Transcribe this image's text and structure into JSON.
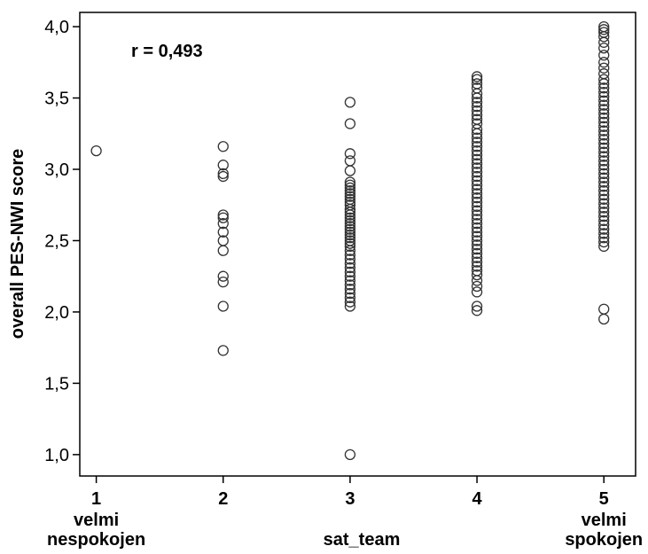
{
  "chart_data": {
    "type": "scatter",
    "xlabel": "sat_team",
    "ylabel": "overall PES-NWI score",
    "annotation": "r = 0,493",
    "xlim": [
      0.87,
      5.25
    ],
    "ylim": [
      0.85,
      4.1
    ],
    "grid": false,
    "x_ticks": [
      {
        "value": 1,
        "label": "1"
      },
      {
        "value": 2,
        "label": "2"
      },
      {
        "value": 3,
        "label": "3"
      },
      {
        "value": 4,
        "label": "4"
      },
      {
        "value": 5,
        "label": "5"
      }
    ],
    "x_category_labels": [
      {
        "value": 1,
        "lines": [
          "velmi",
          "nespokojen"
        ]
      },
      {
        "value": 5,
        "lines": [
          "velmi",
          "spokojen"
        ]
      }
    ],
    "y_ticks": [
      {
        "value": 1.0,
        "label": "1,0"
      },
      {
        "value": 1.5,
        "label": "1,5"
      },
      {
        "value": 2.0,
        "label": "2,0"
      },
      {
        "value": 2.5,
        "label": "2,5"
      },
      {
        "value": 3.0,
        "label": "3,0"
      },
      {
        "value": 3.5,
        "label": "3,5"
      },
      {
        "value": 4.0,
        "label": "4,0"
      }
    ],
    "groups": [
      {
        "x": 1,
        "y": [
          3.13
        ]
      },
      {
        "x": 2,
        "y": [
          3.16,
          3.03,
          2.97,
          2.95,
          2.68,
          2.66,
          2.62,
          2.56,
          2.5,
          2.43,
          2.25,
          2.21,
          2.04,
          1.73
        ]
      },
      {
        "x": 3,
        "y": [
          3.47,
          3.32,
          3.11,
          3.06,
          2.99,
          2.91,
          2.89,
          2.87,
          2.85,
          2.83,
          2.81,
          2.79,
          2.77,
          2.75,
          2.72,
          2.7,
          2.68,
          2.66,
          2.64,
          2.62,
          2.6,
          2.58,
          2.56,
          2.54,
          2.52,
          2.5,
          2.48,
          2.46,
          2.43,
          2.4,
          2.37,
          2.34,
          2.31,
          2.28,
          2.25,
          2.22,
          2.19,
          2.16,
          2.13,
          2.1,
          2.07,
          2.04,
          1.0
        ]
      },
      {
        "x": 4,
        "y": [
          3.65,
          3.63,
          3.6,
          3.57,
          3.53,
          3.5,
          3.47,
          3.44,
          3.41,
          3.38,
          3.35,
          3.32,
          3.28,
          3.25,
          3.22,
          3.19,
          3.16,
          3.13,
          3.1,
          3.07,
          3.04,
          3.01,
          2.98,
          2.95,
          2.92,
          2.89,
          2.86,
          2.83,
          2.8,
          2.77,
          2.74,
          2.71,
          2.68,
          2.65,
          2.62,
          2.59,
          2.56,
          2.53,
          2.5,
          2.47,
          2.44,
          2.41,
          2.38,
          2.35,
          2.32,
          2.29,
          2.26,
          2.22,
          2.18,
          2.14,
          2.04,
          2.01
        ]
      },
      {
        "x": 5,
        "y": [
          4.0,
          3.98,
          3.96,
          3.93,
          3.89,
          3.85,
          3.8,
          3.75,
          3.71,
          3.67,
          3.63,
          3.6,
          3.57,
          3.54,
          3.51,
          3.48,
          3.45,
          3.42,
          3.39,
          3.36,
          3.33,
          3.3,
          3.27,
          3.24,
          3.21,
          3.18,
          3.15,
          3.12,
          3.09,
          3.06,
          3.03,
          3.0,
          2.97,
          2.94,
          2.91,
          2.88,
          2.85,
          2.82,
          2.79,
          2.76,
          2.73,
          2.7,
          2.67,
          2.64,
          2.61,
          2.58,
          2.55,
          2.52,
          2.49,
          2.46,
          2.02,
          1.95
        ]
      }
    ]
  }
}
